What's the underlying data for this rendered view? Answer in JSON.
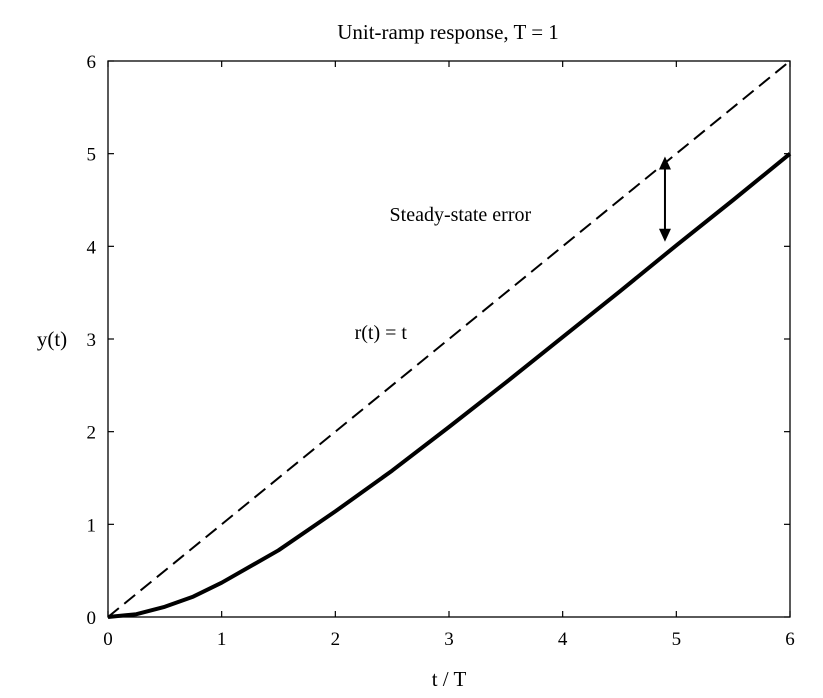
{
  "chart_data": {
    "type": "line",
    "title": "Unit-ramp response, T = 1",
    "xlabel": "t / T",
    "ylabel": "y(t)",
    "xlim": [
      0,
      6
    ],
    "ylim": [
      0,
      6
    ],
    "xticks": [
      "0",
      "1",
      "2",
      "3",
      "4",
      "5",
      "6"
    ],
    "yticks": [
      "0",
      "1",
      "2",
      "3",
      "4",
      "5",
      "6"
    ],
    "grid": false,
    "series": [
      {
        "name": "r(t) = t",
        "style": "dashed",
        "color": "#000000",
        "x": [
          0,
          6
        ],
        "y": [
          0,
          6
        ]
      },
      {
        "name": "",
        "style": "solid-thick",
        "color": "#000000",
        "x": [
          0,
          0.25,
          0.5,
          0.75,
          1,
          1.5,
          2,
          2.5,
          3,
          3.5,
          4,
          4.5,
          5,
          5.5,
          6
        ],
        "y": [
          0,
          0.03,
          0.11,
          0.22,
          0.37,
          0.72,
          1.14,
          1.58,
          2.05,
          2.53,
          3.02,
          3.51,
          4.01,
          4.5,
          5.0
        ]
      }
    ],
    "annotations": [
      {
        "text": "r(t) = t",
        "x": 2.4,
        "y": 3.0
      },
      {
        "text": "Steady-state error",
        "x": 3.1,
        "y": 4.35,
        "arrow_x": 4.9,
        "arrow_from": 4.05,
        "arrow_to": 4.97
      }
    ]
  }
}
